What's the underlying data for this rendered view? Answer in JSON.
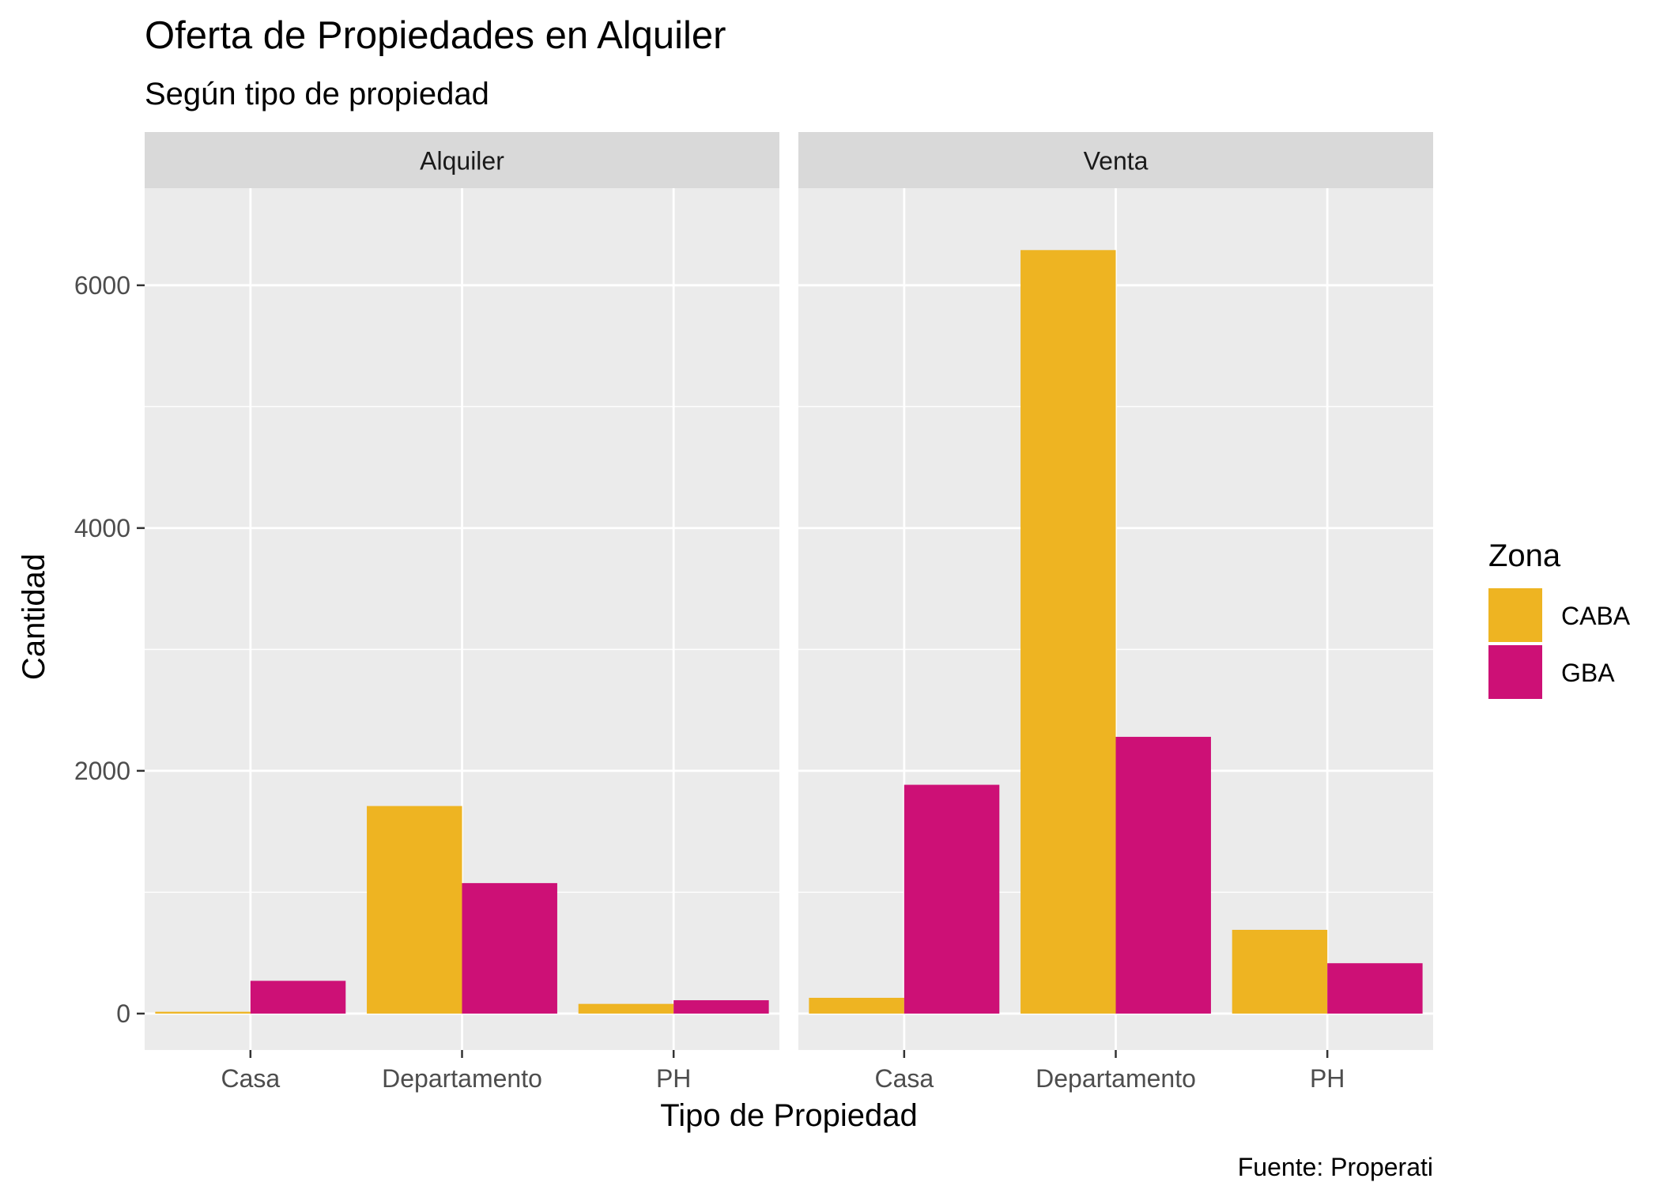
{
  "chart_data": {
    "type": "bar",
    "title": "Oferta de Propiedades en Alquiler",
    "subtitle": "Según tipo de propiedad",
    "xlabel": "Tipo de Propiedad",
    "ylabel": "Cantidad",
    "caption": "Fuente: Properati",
    "ylim": [
      -300,
      6800
    ],
    "yticks": [
      0,
      2000,
      4000,
      6000
    ],
    "yminor": [
      1000,
      3000,
      5000
    ],
    "grid": true,
    "legend": {
      "title": "Zona",
      "placement": "right",
      "items": [
        {
          "name": "CABA",
          "color": "#EEB422"
        },
        {
          "name": "GBA",
          "color": "#CD1076"
        }
      ]
    },
    "categories": [
      "Casa",
      "Departamento",
      "PH"
    ],
    "facets": [
      {
        "label": "Alquiler",
        "series": [
          {
            "name": "CABA",
            "values": [
              15,
              1710,
              80
            ]
          },
          {
            "name": "GBA",
            "values": [
              270,
              1075,
              110
            ]
          }
        ]
      },
      {
        "label": "Venta",
        "series": [
          {
            "name": "CABA",
            "values": [
              130,
              6290,
              690
            ]
          },
          {
            "name": "GBA",
            "values": [
              1885,
              2280,
              415
            ]
          }
        ]
      }
    ],
    "colors": {
      "panel": "#EBEBEB",
      "strip": "#D9D9D9",
      "grid": "#FFFFFF",
      "axis_text": "#4D4D4D"
    }
  }
}
